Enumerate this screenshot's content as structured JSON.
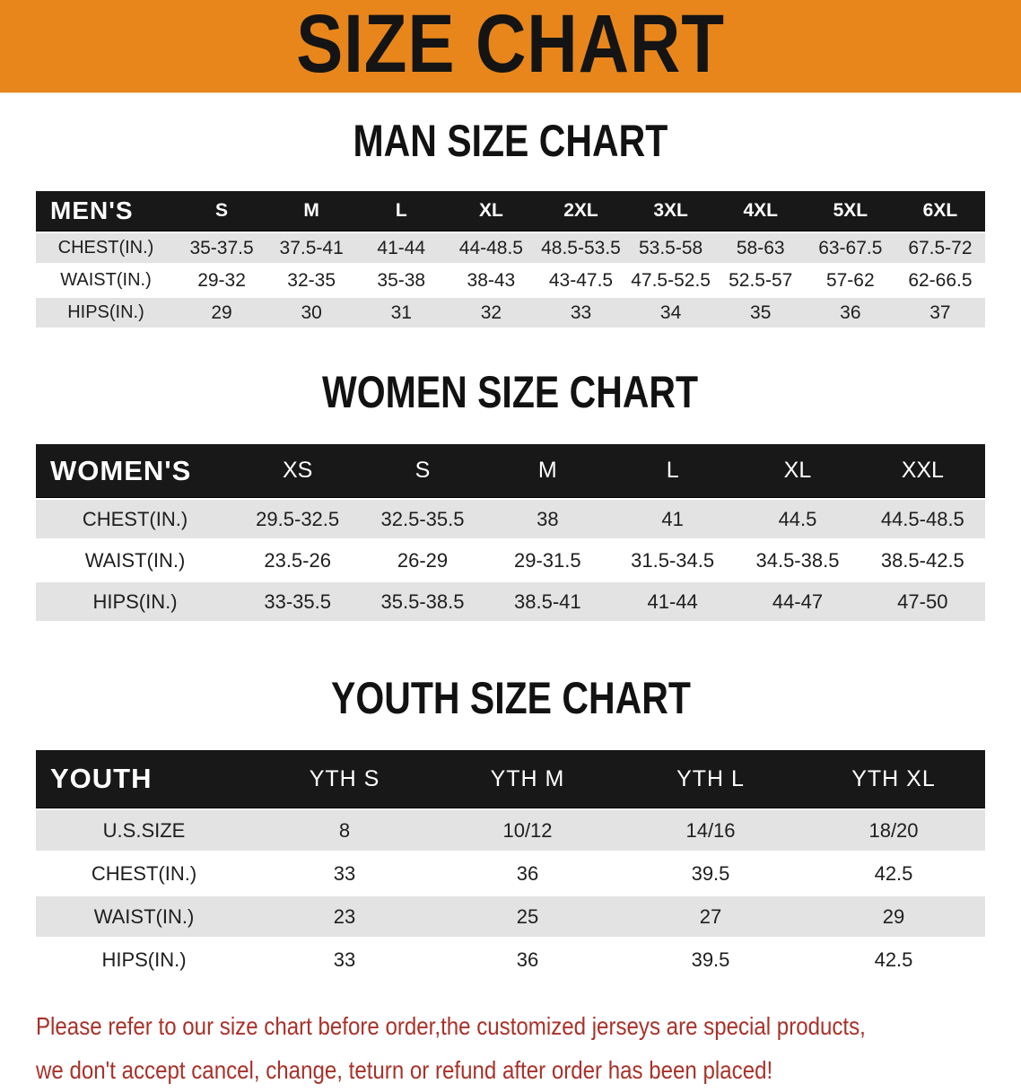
{
  "banner": {
    "title": "SIZE CHART"
  },
  "colors": {
    "banner_bg": "#E8861C",
    "header_bg": "#181818",
    "row_gray": "#E3E3E3",
    "disclaimer_red": "#A8322A"
  },
  "sections": [
    {
      "heading": "MAN SIZE CHART",
      "table": {
        "label": "MEN'S",
        "columns": [
          "S",
          "M",
          "L",
          "XL",
          "2XL",
          "3XL",
          "4XL",
          "5XL",
          "6XL"
        ],
        "rows": [
          {
            "label": "CHEST(IN.)",
            "values": [
              "35-37.5",
              "37.5-41",
              "41-44",
              "44-48.5",
              "48.5-53.5",
              "53.5-58",
              "58-63",
              "63-67.5",
              "67.5-72"
            ]
          },
          {
            "label": "WAIST(IN.)",
            "values": [
              "29-32",
              "32-35",
              "35-38",
              "38-43",
              "43-47.5",
              "47.5-52.5",
              "52.5-57",
              "57-62",
              "62-66.5"
            ]
          },
          {
            "label": "HIPS(IN.)",
            "values": [
              "29",
              "30",
              "31",
              "32",
              "33",
              "34",
              "35",
              "36",
              "37"
            ]
          }
        ]
      }
    },
    {
      "heading": "WOMEN SIZE CHART",
      "table": {
        "label": "WOMEN'S",
        "columns": [
          "XS",
          "S",
          "M",
          "L",
          "XL",
          "XXL"
        ],
        "rows": [
          {
            "label": "CHEST(IN.)",
            "values": [
              "29.5-32.5",
              "32.5-35.5",
              "38",
              "41",
              "44.5",
              "44.5-48.5"
            ]
          },
          {
            "label": "WAIST(IN.)",
            "values": [
              "23.5-26",
              "26-29",
              "29-31.5",
              "31.5-34.5",
              "34.5-38.5",
              "38.5-42.5"
            ]
          },
          {
            "label": "HIPS(IN.)",
            "values": [
              "33-35.5",
              "35.5-38.5",
              "38.5-41",
              "41-44",
              "44-47",
              "47-50"
            ]
          }
        ]
      }
    },
    {
      "heading": "YOUTH SIZE CHART",
      "table": {
        "label": "YOUTH",
        "columns": [
          "YTH S",
          "YTH M",
          "YTH L",
          "YTH XL"
        ],
        "rows": [
          {
            "label": "U.S.SIZE",
            "values": [
              "8",
              "10/12",
              "14/16",
              "18/20"
            ]
          },
          {
            "label": "CHEST(IN.)",
            "values": [
              "33",
              "36",
              "39.5",
              "42.5"
            ]
          },
          {
            "label": "WAIST(IN.)",
            "values": [
              "23",
              "25",
              "27",
              "29"
            ]
          },
          {
            "label": "HIPS(IN.)",
            "values": [
              "33",
              "36",
              "39.5",
              "42.5"
            ]
          }
        ]
      }
    }
  ],
  "disclaimer": {
    "line1": "Please refer to our size chart before order,the customized jerseys are special products,",
    "line2": "we don't accept cancel, change, teturn or refund after order has been placed!"
  }
}
